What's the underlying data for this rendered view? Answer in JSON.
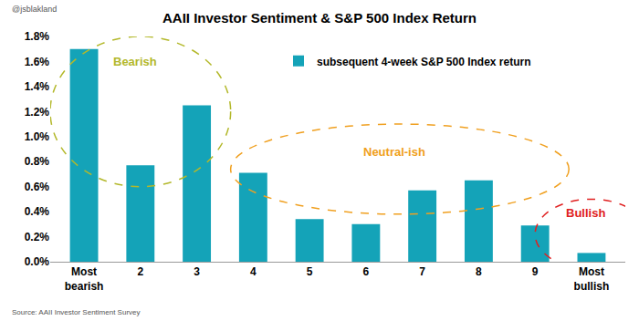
{
  "chart_data": {
    "type": "bar",
    "title": "AAII Investor Sentiment & S&P 500 Index Return",
    "credit": "@jsblakland",
    "source": "Source: AAII Investor Sentiment Survey",
    "categories": [
      "Most bearish",
      "2",
      "3",
      "4",
      "5",
      "6",
      "7",
      "8",
      "9",
      "Most bullish"
    ],
    "series": [
      {
        "name": "subsequent 4-week S&P 500 Index return",
        "color": "#14a3b8",
        "values": [
          1.7,
          0.77,
          1.25,
          0.71,
          0.34,
          0.3,
          0.57,
          0.65,
          0.29,
          0.07
        ]
      }
    ],
    "annotations": [
      {
        "text": "Bearish"
      },
      {
        "text": "Neutral-ish"
      },
      {
        "text": "Bullish"
      }
    ],
    "ylim": [
      0,
      1.8
    ],
    "yticks": [
      {
        "value": 0,
        "label": "0.0%"
      },
      {
        "value": 0.2,
        "label": "0.2%"
      },
      {
        "value": 0.4,
        "label": "0.4%"
      },
      {
        "value": 0.6,
        "label": "0.6%"
      },
      {
        "value": 0.8,
        "label": "0.8%"
      },
      {
        "value": 1.0,
        "label": "1.0%"
      },
      {
        "value": 1.2,
        "label": "1.2%"
      },
      {
        "value": 1.4,
        "label": "1.4%"
      },
      {
        "value": 1.6,
        "label": "1.6%"
      },
      {
        "value": 1.8,
        "label": "1.8%"
      }
    ],
    "grid": false,
    "legend": "top"
  }
}
